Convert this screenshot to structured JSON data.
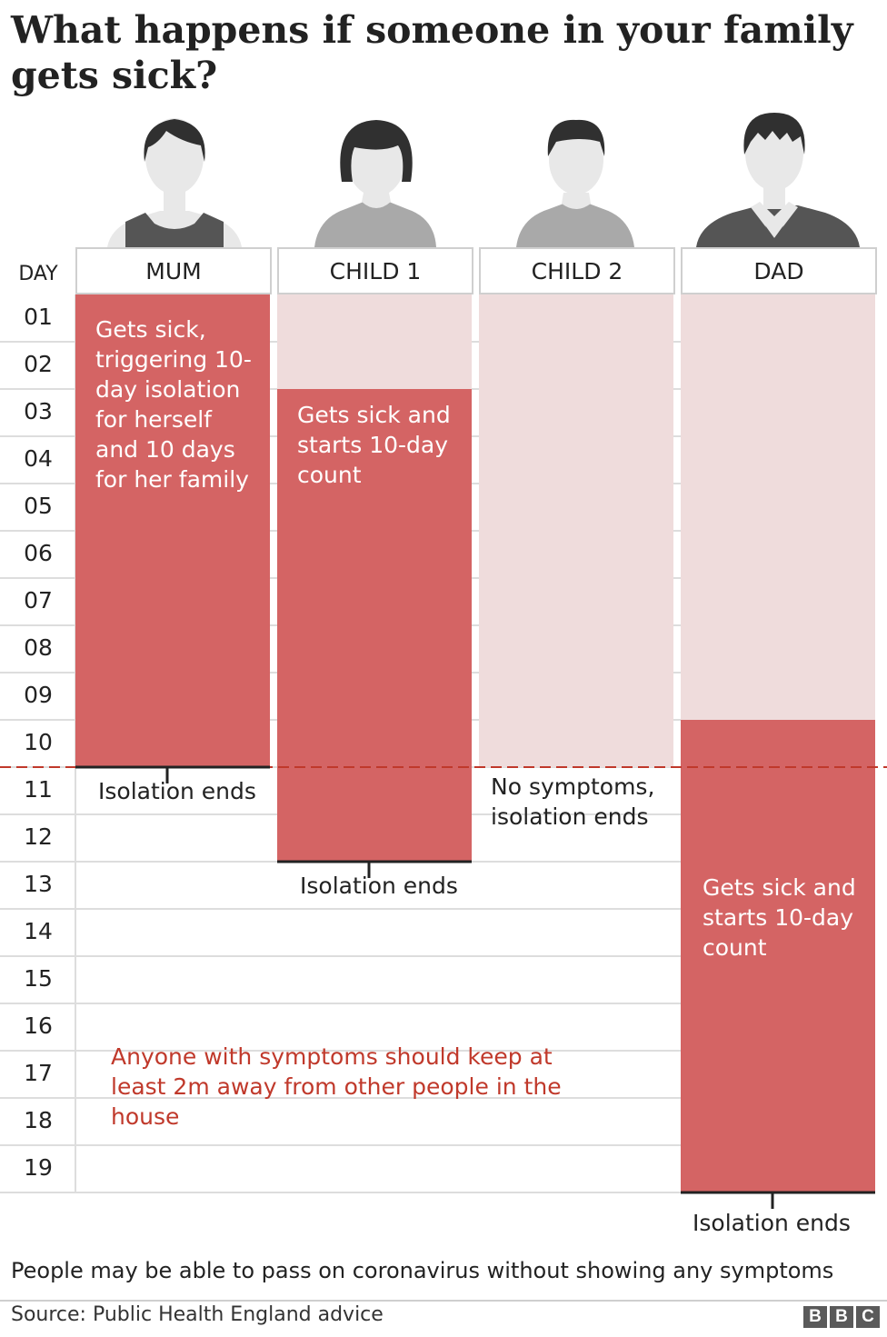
{
  "title": "What happens if someone in your family gets sick?",
  "day_label": "DAY",
  "days": [
    "01",
    "02",
    "03",
    "04",
    "05",
    "06",
    "07",
    "08",
    "09",
    "10",
    "11",
    "12",
    "13",
    "14",
    "15",
    "16",
    "17",
    "18",
    "19"
  ],
  "chart_data": {
    "type": "table",
    "columns": [
      {
        "name": "MUM",
        "isolation_start": 1,
        "isolation_end": 10,
        "sick_start": 1,
        "sick_end": 10
      },
      {
        "name": "CHILD 1",
        "isolation_start": 1,
        "isolation_end": 12,
        "sick_start": 3,
        "sick_end": 12
      },
      {
        "name": "CHILD 2",
        "isolation_start": 1,
        "isolation_end": 10,
        "sick_start": null,
        "sick_end": null
      },
      {
        "name": "DAD",
        "isolation_start": 1,
        "isolation_end": 19,
        "sick_start": 10,
        "sick_end": 19
      }
    ],
    "family_isolation_end_day": 10
  },
  "annotations": {
    "mum_sick": "Gets sick, triggering 10-day isolation for herself and 10 days for her family",
    "child1_sick": "Gets sick and starts 10-day count",
    "dad_sick": "Gets sick and starts 10-day count",
    "child2_note": "No symptoms, isolation ends",
    "mum_end": "Isolation ends",
    "child1_end": "Isolation ends",
    "dad_end": "Isolation ends",
    "distance_note": "Anyone with symptoms should keep at least 2m away from other people in the house"
  },
  "footnote": "People may be able to pass on coronavirus without showing any symptoms",
  "source": "Source: Public Health England advice",
  "logo": [
    "B",
    "B",
    "C"
  ],
  "colors": {
    "sick": "#d46464",
    "isolating": "#efdcdc",
    "grid": "#dddddd",
    "avatar_skin": "#e8e8e8",
    "avatar_hair": "#303030",
    "avatar_shirt": "#a9a9a9",
    "avatar_dark_shirt": "#555555",
    "divider": "#c0392b"
  }
}
